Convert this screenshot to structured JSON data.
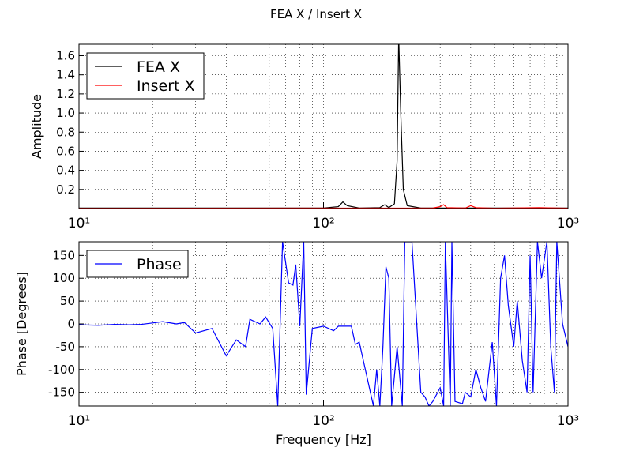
{
  "chart_data": [
    {
      "type": "line",
      "title": "FEA X / Insert X",
      "ylabel": "Amplitude",
      "xscale": "log",
      "grid": true,
      "legend": "upper left",
      "xlim": [
        10,
        1000
      ],
      "xticks": [
        {
          "value": 10,
          "label": "10¹"
        },
        {
          "value": 100,
          "label": "10²"
        },
        {
          "value": 1000,
          "label": "10³"
        }
      ],
      "xminorticks": [
        20,
        30,
        40,
        50,
        60,
        70,
        80,
        90,
        200,
        300,
        400,
        500,
        600,
        700,
        800,
        900
      ],
      "ylim": [
        0,
        1.72
      ],
      "yticks": [
        0.2,
        0.4,
        0.6,
        0.8,
        {
          "value": 1,
          "label": "1.0"
        },
        1.2,
        1.4,
        1.6
      ],
      "series": [
        {
          "name": "FEA X",
          "color": "#000000",
          "x": [
            10,
            50,
            100,
            115,
            120,
            125,
            140,
            170,
            178,
            185,
            195,
            200,
            203,
            207,
            212,
            220,
            250,
            1000
          ],
          "values": [
            0.005,
            0.005,
            0.005,
            0.02,
            0.07,
            0.03,
            0.005,
            0.01,
            0.04,
            0.01,
            0.05,
            0.5,
            1.8,
            1.0,
            0.2,
            0.03,
            0.005,
            0.005
          ]
        },
        {
          "name": "Insert X",
          "color": "#ff0000",
          "x": [
            10,
            280,
            300,
            310,
            320,
            380,
            400,
            420,
            500,
            760,
            1000
          ],
          "values": [
            0.002,
            0.005,
            0.02,
            0.04,
            0.01,
            0.005,
            0.03,
            0.01,
            0.003,
            0.01,
            0.003
          ]
        }
      ]
    },
    {
      "type": "line",
      "xlabel": "Frequency [Hz]",
      "ylabel": "Phase [Degrees]",
      "xscale": "log",
      "grid": true,
      "legend": "upper left",
      "xlim": [
        10,
        1000
      ],
      "xticks": [
        {
          "value": 10,
          "label": "10¹"
        },
        {
          "value": 100,
          "label": "10²"
        },
        {
          "value": 1000,
          "label": "10³"
        }
      ],
      "xminorticks": [
        20,
        30,
        40,
        50,
        60,
        70,
        80,
        90,
        200,
        300,
        400,
        500,
        600,
        700,
        800,
        900
      ],
      "ylim": [
        -180,
        180
      ],
      "yticks": [
        -150,
        -100,
        -50,
        0,
        50,
        100,
        150
      ],
      "series": [
        {
          "name": "Phase",
          "color": "#0000ff",
          "x": [
            10,
            12,
            14,
            16,
            18,
            20,
            22,
            25,
            27,
            30,
            35,
            40,
            44,
            48,
            50,
            55,
            58,
            62,
            65,
            68,
            72,
            75,
            77,
            80,
            83,
            85,
            90,
            100,
            110,
            115,
            125,
            130,
            135,
            140,
            160,
            165,
            170,
            175,
            180,
            185,
            190,
            200,
            210,
            215,
            230,
            250,
            260,
            270,
            280,
            300,
            310,
            315,
            330,
            335,
            345,
            370,
            380,
            400,
            420,
            440,
            460,
            490,
            510,
            530,
            550,
            570,
            600,
            620,
            650,
            680,
            700,
            720,
            750,
            780,
            820,
            850,
            880,
            900,
            950,
            1000
          ],
          "values": [
            -2,
            -3,
            -1,
            -2,
            -1,
            2,
            5,
            0,
            3,
            -20,
            -10,
            -70,
            -35,
            -50,
            10,
            0,
            15,
            -10,
            -180,
            180,
            90,
            85,
            130,
            -5,
            180,
            -155,
            -10,
            -5,
            -15,
            -5,
            -5,
            -5,
            -45,
            -40,
            -180,
            -100,
            -180,
            -50,
            125,
            100,
            -180,
            -50,
            -180,
            180,
            180,
            -150,
            -160,
            -180,
            -170,
            -140,
            -180,
            180,
            -180,
            180,
            -170,
            -175,
            -150,
            -160,
            -100,
            -140,
            -170,
            -40,
            -180,
            100,
            150,
            40,
            -50,
            50,
            -80,
            -150,
            150,
            -150,
            180,
            100,
            180,
            -50,
            -150,
            180,
            0,
            -50
          ]
        }
      ]
    }
  ]
}
